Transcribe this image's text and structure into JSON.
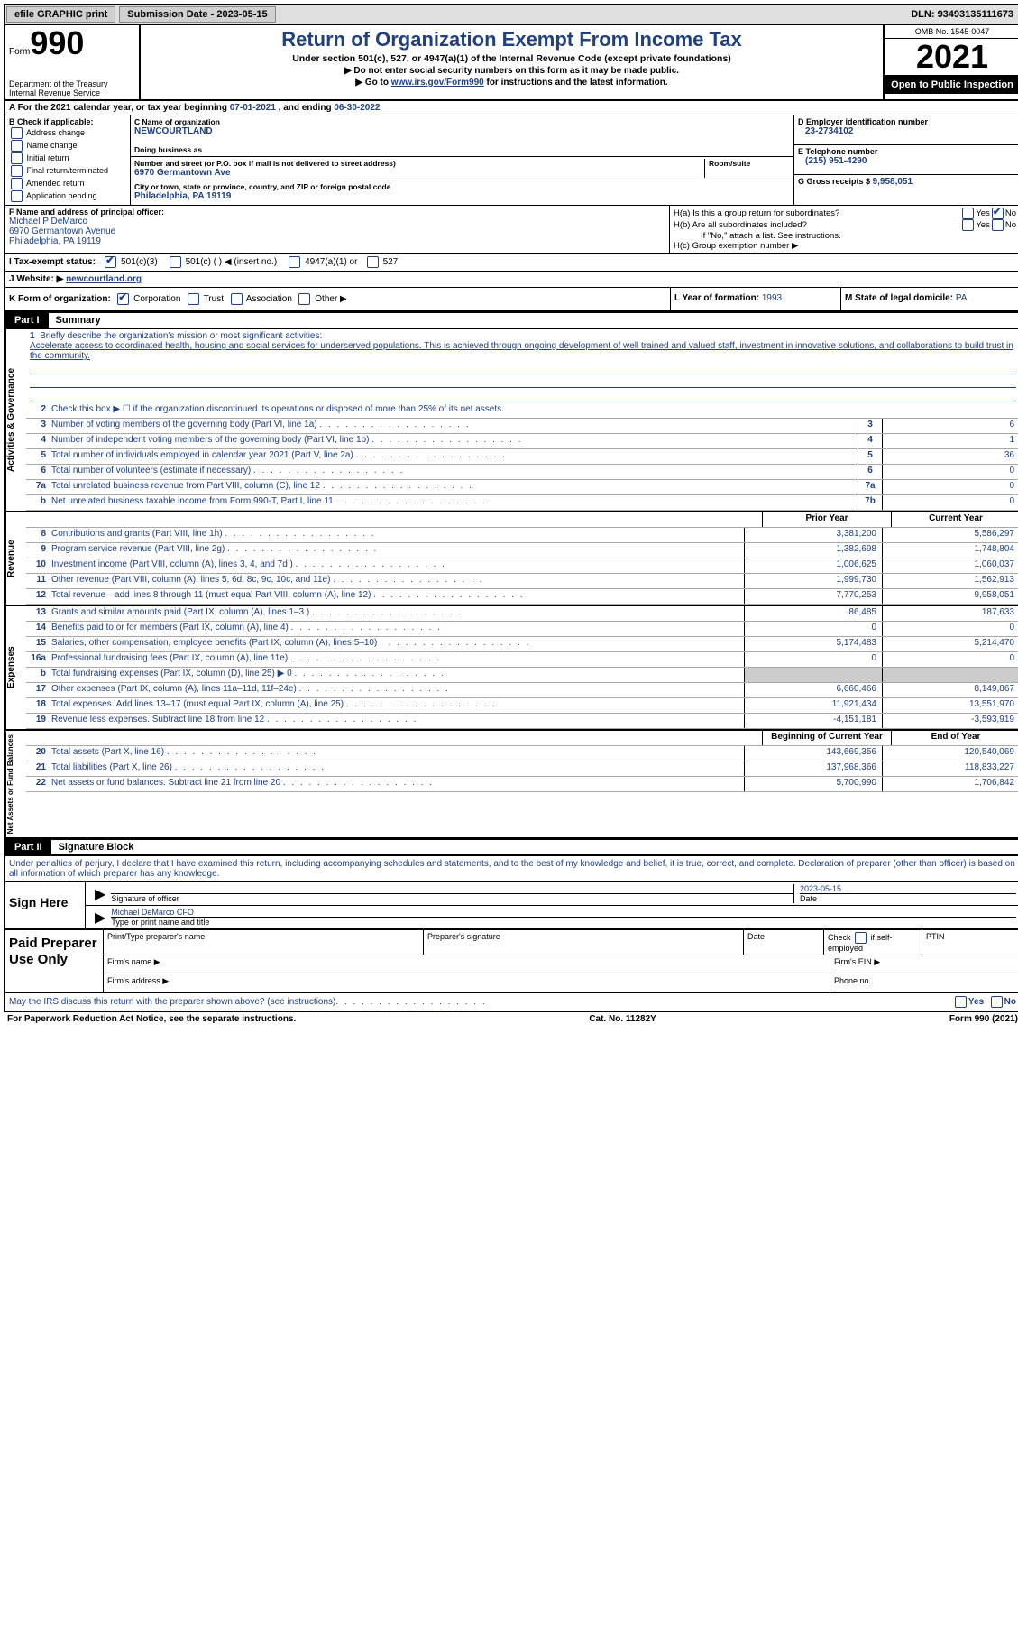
{
  "topbar": {
    "efile": "efile GRAPHIC print",
    "subdate_label": "Submission Date - ",
    "subdate": "2023-05-15",
    "dln_label": "DLN: ",
    "dln": "93493135111673"
  },
  "header": {
    "form_word": "Form",
    "form_no": "990",
    "dept": "Department of the Treasury\nInternal Revenue Service",
    "title": "Return of Organization Exempt From Income Tax",
    "sub1": "Under section 501(c), 527, or 4947(a)(1) of the Internal Revenue Code (except private foundations)",
    "sub2": "▶ Do not enter social security numbers on this form as it may be made public.",
    "sub3_pre": "▶ Go to ",
    "sub3_link": "www.irs.gov/Form990",
    "sub3_post": " for instructions and the latest information.",
    "omb": "OMB No. 1545-0047",
    "year": "2021",
    "inspect": "Open to Public Inspection"
  },
  "rowA": {
    "text_pre": "A For the 2021 calendar year, or tax year beginning ",
    "begin": "07-01-2021",
    "mid": "   , and ending ",
    "end": "06-30-2022"
  },
  "colB": {
    "label": "B Check if applicable:",
    "items": [
      "Address change",
      "Name change",
      "Initial return",
      "Final return/terminated",
      "Amended return",
      "Application pending"
    ]
  },
  "colC": {
    "name_label": "C Name of organization",
    "name": "NEWCOURTLAND",
    "dba_label": "Doing business as",
    "addr_label": "Number and street (or P.O. box if mail is not delivered to street address)",
    "room_label": "Room/suite",
    "addr": "6970 Germantown Ave",
    "city_label": "City or town, state or province, country, and ZIP or foreign postal code",
    "city": "Philadelphia, PA  19119"
  },
  "colD": {
    "d_label": "D Employer identification number",
    "d_val": "23-2734102",
    "e_label": "E Telephone number",
    "e_val": "(215) 951-4290",
    "g_label": "G Gross receipts $ ",
    "g_val": "9,958,051"
  },
  "rowF": {
    "label": "F Name and address of principal officer:",
    "name": "Michael P DeMarco",
    "addr1": "6970 Germantown Avenue",
    "addr2": "Philadelphia, PA  19119"
  },
  "rowH": {
    "ha": "H(a)  Is this a group return for subordinates?",
    "hb": "H(b)  Are all subordinates included?",
    "hb_note": "If \"No,\" attach a list. See instructions.",
    "hc": "H(c)  Group exemption number ▶",
    "yes": "Yes",
    "no": "No"
  },
  "rowI": {
    "label": "I  Tax-exempt status:",
    "o1": "501(c)(3)",
    "o2": "501(c) (  ) ◀ (insert no.)",
    "o3": "4947(a)(1) or",
    "o4": "527"
  },
  "rowJ": {
    "label": "J  Website: ▶  ",
    "val": "newcourtland.org"
  },
  "rowK": {
    "label": "K Form of organization:",
    "o1": "Corporation",
    "o2": "Trust",
    "o3": "Association",
    "o4": "Other ▶"
  },
  "rowL": {
    "label": "L Year of formation: ",
    "val": "1993"
  },
  "rowM": {
    "label": "M State of legal domicile: ",
    "val": "PA"
  },
  "part1": {
    "num": "Part I",
    "title": "Summary"
  },
  "mission": {
    "num": "1",
    "label": "Briefly describe the organization's mission or most significant activities:",
    "text": "Accelerate access to coordinated health, housing and social services for underserved populations. This is achieved through ongoing development of well trained and valued staff, investment in innovative solutions, and collaborations to build trust in the community."
  },
  "vlabels": {
    "gov": "Activities & Governance",
    "rev": "Revenue",
    "exp": "Expenses",
    "net": "Net Assets or Fund Balances"
  },
  "gov_rows": [
    {
      "n": "2",
      "d": "Check this box ▶ ☐  if the organization discontinued its operations or disposed of more than 25% of its net assets.",
      "box": "",
      "v": ""
    },
    {
      "n": "3",
      "d": "Number of voting members of the governing body (Part VI, line 1a)",
      "box": "3",
      "v": "6"
    },
    {
      "n": "4",
      "d": "Number of independent voting members of the governing body (Part VI, line 1b)",
      "box": "4",
      "v": "1"
    },
    {
      "n": "5",
      "d": "Total number of individuals employed in calendar year 2021 (Part V, line 2a)",
      "box": "5",
      "v": "36"
    },
    {
      "n": "6",
      "d": "Total number of volunteers (estimate if necessary)",
      "box": "6",
      "v": "0"
    },
    {
      "n": "7a",
      "d": "Total unrelated business revenue from Part VIII, column (C), line 12",
      "box": "7a",
      "v": "0"
    },
    {
      "n": "b",
      "d": "Net unrelated business taxable income from Form 990-T, Part I, line 11",
      "box": "7b",
      "v": "0"
    }
  ],
  "colheaders": {
    "prior": "Prior Year",
    "current": "Current Year",
    "begin": "Beginning of Current Year",
    "end": "End of Year"
  },
  "rev_rows": [
    {
      "n": "8",
      "d": "Contributions and grants (Part VIII, line 1h)",
      "p": "3,381,200",
      "c": "5,586,297"
    },
    {
      "n": "9",
      "d": "Program service revenue (Part VIII, line 2g)",
      "p": "1,382,698",
      "c": "1,748,804"
    },
    {
      "n": "10",
      "d": "Investment income (Part VIII, column (A), lines 3, 4, and 7d )",
      "p": "1,006,625",
      "c": "1,060,037"
    },
    {
      "n": "11",
      "d": "Other revenue (Part VIII, column (A), lines 5, 6d, 8c, 9c, 10c, and 11e)",
      "p": "1,999,730",
      "c": "1,562,913"
    },
    {
      "n": "12",
      "d": "Total revenue—add lines 8 through 11 (must equal Part VIII, column (A), line 12)",
      "p": "7,770,253",
      "c": "9,958,051"
    }
  ],
  "exp_rows": [
    {
      "n": "13",
      "d": "Grants and similar amounts paid (Part IX, column (A), lines 1–3 )",
      "p": "86,485",
      "c": "187,633"
    },
    {
      "n": "14",
      "d": "Benefits paid to or for members (Part IX, column (A), line 4)",
      "p": "0",
      "c": "0"
    },
    {
      "n": "15",
      "d": "Salaries, other compensation, employee benefits (Part IX, column (A), lines 5–10)",
      "p": "5,174,483",
      "c": "5,214,470"
    },
    {
      "n": "16a",
      "d": "Professional fundraising fees (Part IX, column (A), line 11e)",
      "p": "0",
      "c": "0"
    },
    {
      "n": "b",
      "d": "Total fundraising expenses (Part IX, column (D), line 25) ▶ 0",
      "p": "__shaded__",
      "c": "__shaded__"
    },
    {
      "n": "17",
      "d": "Other expenses (Part IX, column (A), lines 11a–11d, 11f–24e)",
      "p": "6,660,466",
      "c": "8,149,867"
    },
    {
      "n": "18",
      "d": "Total expenses. Add lines 13–17 (must equal Part IX, column (A), line 25)",
      "p": "11,921,434",
      "c": "13,551,970"
    },
    {
      "n": "19",
      "d": "Revenue less expenses. Subtract line 18 from line 12",
      "p": "-4,151,181",
      "c": "-3,593,919"
    }
  ],
  "net_rows": [
    {
      "n": "20",
      "d": "Total assets (Part X, line 16)",
      "p": "143,669,356",
      "c": "120,540,069"
    },
    {
      "n": "21",
      "d": "Total liabilities (Part X, line 26)",
      "p": "137,968,366",
      "c": "118,833,227"
    },
    {
      "n": "22",
      "d": "Net assets or fund balances. Subtract line 21 from line 20",
      "p": "5,700,990",
      "c": "1,706,842"
    }
  ],
  "part2": {
    "num": "Part II",
    "title": "Signature Block"
  },
  "sig": {
    "perjury": "Under penalties of perjury, I declare that I have examined this return, including accompanying schedules and statements, and to the best of my knowledge and belief, it is true, correct, and complete. Declaration of preparer (other than officer) is based on all information of which preparer has any knowledge.",
    "sign_here": "Sign Here",
    "sig_officer": "Signature of officer",
    "date_label": "Date",
    "date": "2023-05-15",
    "name": "Michael DeMarco CFO",
    "name_label": "Type or print name and title"
  },
  "preparer": {
    "side": "Paid Preparer Use Only",
    "r1c1": "Print/Type preparer's name",
    "r1c2": "Preparer's signature",
    "r1c3": "Date",
    "r1c4_pre": "Check ",
    "r1c4_post": " if self-employed",
    "r1c5": "PTIN",
    "r2c1": "Firm's name   ▶",
    "r2c2": "Firm's EIN ▶",
    "r3c1": "Firm's address ▶",
    "r3c2": "Phone no."
  },
  "bottom": {
    "q": "May the IRS discuss this return with the preparer shown above? (see instructions)",
    "yes": "Yes",
    "no": "No"
  },
  "footer": {
    "left": "For Paperwork Reduction Act Notice, see the separate instructions.",
    "center": "Cat. No. 11282Y",
    "right": "Form 990 (2021)"
  }
}
